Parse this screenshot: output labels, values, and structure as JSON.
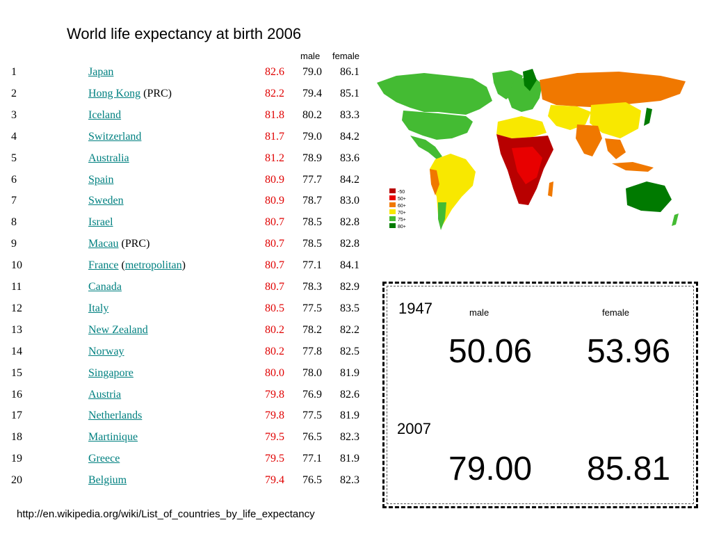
{
  "title": "World life expectancy at birth 2006",
  "columns": {
    "male": "male",
    "female": "female"
  },
  "rows": [
    {
      "rank": "1",
      "country": "Japan",
      "extra": "",
      "total": "82.6",
      "male": "79.0",
      "female": "86.1"
    },
    {
      "rank": "2",
      "country": "Hong Kong",
      "extra": " (PRC)",
      "total": "82.2",
      "male": "79.4",
      "female": "85.1"
    },
    {
      "rank": "3",
      "country": "Iceland",
      "extra": "",
      "total": "81.8",
      "male": "80.2",
      "female": "83.3"
    },
    {
      "rank": "4",
      "country": "Switzerland",
      "extra": "",
      "total": "81.7",
      "male": "79.0",
      "female": "84.2"
    },
    {
      "rank": "5",
      "country": "Australia",
      "extra": "",
      "total": "81.2",
      "male": "78.9",
      "female": "83.6"
    },
    {
      "rank": "6",
      "country": "Spain",
      "extra": "",
      "total": "80.9",
      "male": "77.7",
      "female": "84.2"
    },
    {
      "rank": "7",
      "country": "Sweden",
      "extra": "",
      "total": "80.9",
      "male": "78.7",
      "female": "83.0"
    },
    {
      "rank": "8",
      "country": "Israel",
      "extra": "",
      "total": "80.7",
      "male": "78.5",
      "female": "82.8"
    },
    {
      "rank": "9",
      "country": "Macau",
      "extra": " (PRC)",
      "total": "80.7",
      "male": "78.5",
      "female": "82.8"
    },
    {
      "rank": "10",
      "country": "France",
      "extra": "",
      "total": "80.7",
      "male": "77.1",
      "female": "84.1",
      "sub": "metropolitan"
    },
    {
      "rank": "11",
      "country": "Canada",
      "extra": "",
      "total": "80.7",
      "male": "78.3",
      "female": "82.9"
    },
    {
      "rank": "12",
      "country": "Italy",
      "extra": "",
      "total": "80.5",
      "male": "77.5",
      "female": "83.5"
    },
    {
      "rank": "13",
      "country": "New Zealand",
      "extra": "",
      "total": "80.2",
      "male": "78.2",
      "female": "82.2"
    },
    {
      "rank": "14",
      "country": "Norway",
      "extra": "",
      "total": "80.2",
      "male": "77.8",
      "female": "82.5"
    },
    {
      "rank": "15",
      "country": "Singapore",
      "extra": "",
      "total": "80.0",
      "male": "78.0",
      "female": "81.9"
    },
    {
      "rank": "16",
      "country": "Austria",
      "extra": "",
      "total": "79.8",
      "male": "76.9",
      "female": "82.6"
    },
    {
      "rank": "17",
      "country": "Netherlands",
      "extra": "",
      "total": "79.8",
      "male": "77.5",
      "female": "81.9"
    },
    {
      "rank": "18",
      "country": "Martinique",
      "extra": "",
      "total": "79.5",
      "male": "76.5",
      "female": "82.3"
    },
    {
      "rank": "19",
      "country": "Greece",
      "extra": "",
      "total": "79.5",
      "male": "77.1",
      "female": "81.9"
    },
    {
      "rank": "20",
      "country": "Belgium",
      "extra": "",
      "total": "79.4",
      "male": "76.5",
      "female": "82.3"
    }
  ],
  "map": {
    "legend": [
      "-50",
      "50+",
      "60+",
      "70+",
      "75+",
      "80+"
    ],
    "legend_colors": [
      "#b80000",
      "#e80000",
      "#f07800",
      "#f8e800",
      "#44bb33",
      "#007a00"
    ],
    "ocean_color": "#ffffff"
  },
  "comparison": {
    "male_label": "male",
    "female_label": "female",
    "years": [
      {
        "year": "1947",
        "male": "50.06",
        "female": "53.96"
      },
      {
        "year": "2007",
        "male": "79.00",
        "female": "85.81"
      }
    ]
  },
  "source": "http://en.wikipedia.org/wiki/List_of_countries_by_life_expectancy"
}
